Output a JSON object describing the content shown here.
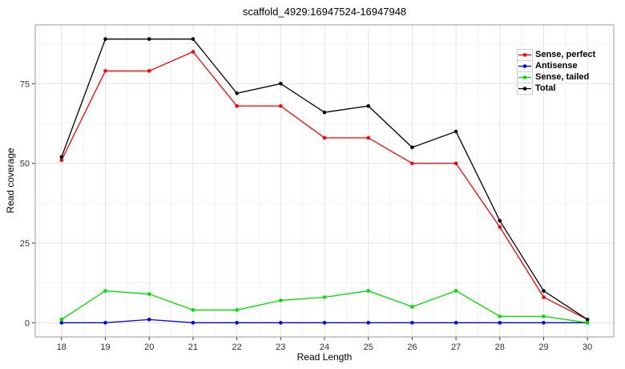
{
  "chart_data": {
    "type": "line",
    "title": "scaffold_4929:16947524-16947948",
    "xlabel": "Read Length",
    "ylabel": "Read coverage",
    "x": [
      18,
      19,
      20,
      21,
      22,
      23,
      24,
      25,
      26,
      27,
      28,
      29,
      30
    ],
    "series": [
      {
        "name": "Sense, perfect",
        "color": "#ff0000",
        "values": [
          51,
          79,
          79,
          85,
          68,
          68,
          58,
          58,
          50,
          50,
          30,
          8,
          1
        ]
      },
      {
        "name": "Antisense",
        "color": "#0000ff",
        "values": [
          0,
          0,
          1,
          0,
          0,
          0,
          0,
          0,
          0,
          0,
          0,
          0,
          0
        ]
      },
      {
        "name": "Sense, tailed",
        "color": "#00dd00",
        "values": [
          1,
          10,
          9,
          4,
          4,
          7,
          8,
          10,
          5,
          10,
          2,
          2,
          0
        ]
      },
      {
        "name": "Total",
        "color": "#000000",
        "values": [
          52,
          89,
          89,
          89,
          72,
          75,
          66,
          68,
          55,
          60,
          32,
          10,
          1
        ]
      }
    ],
    "xticks": [
      18,
      19,
      20,
      21,
      22,
      23,
      24,
      25,
      26,
      27,
      28,
      29,
      30
    ],
    "yticks": [
      0,
      25,
      50,
      75
    ],
    "xlim": [
      17.4,
      30.6
    ],
    "ylim": [
      -4.45,
      93.45
    ],
    "grid": "major and minor gridlines on",
    "legend_position": "inside top-right"
  },
  "style": {
    "panel_border": "#9a9a9a",
    "grid_major": "#e3e3e3",
    "grid_minor": "#f2f2f2",
    "tick_color": "#333333",
    "tick_label_color": "#303030",
    "background": "#ffffff"
  }
}
